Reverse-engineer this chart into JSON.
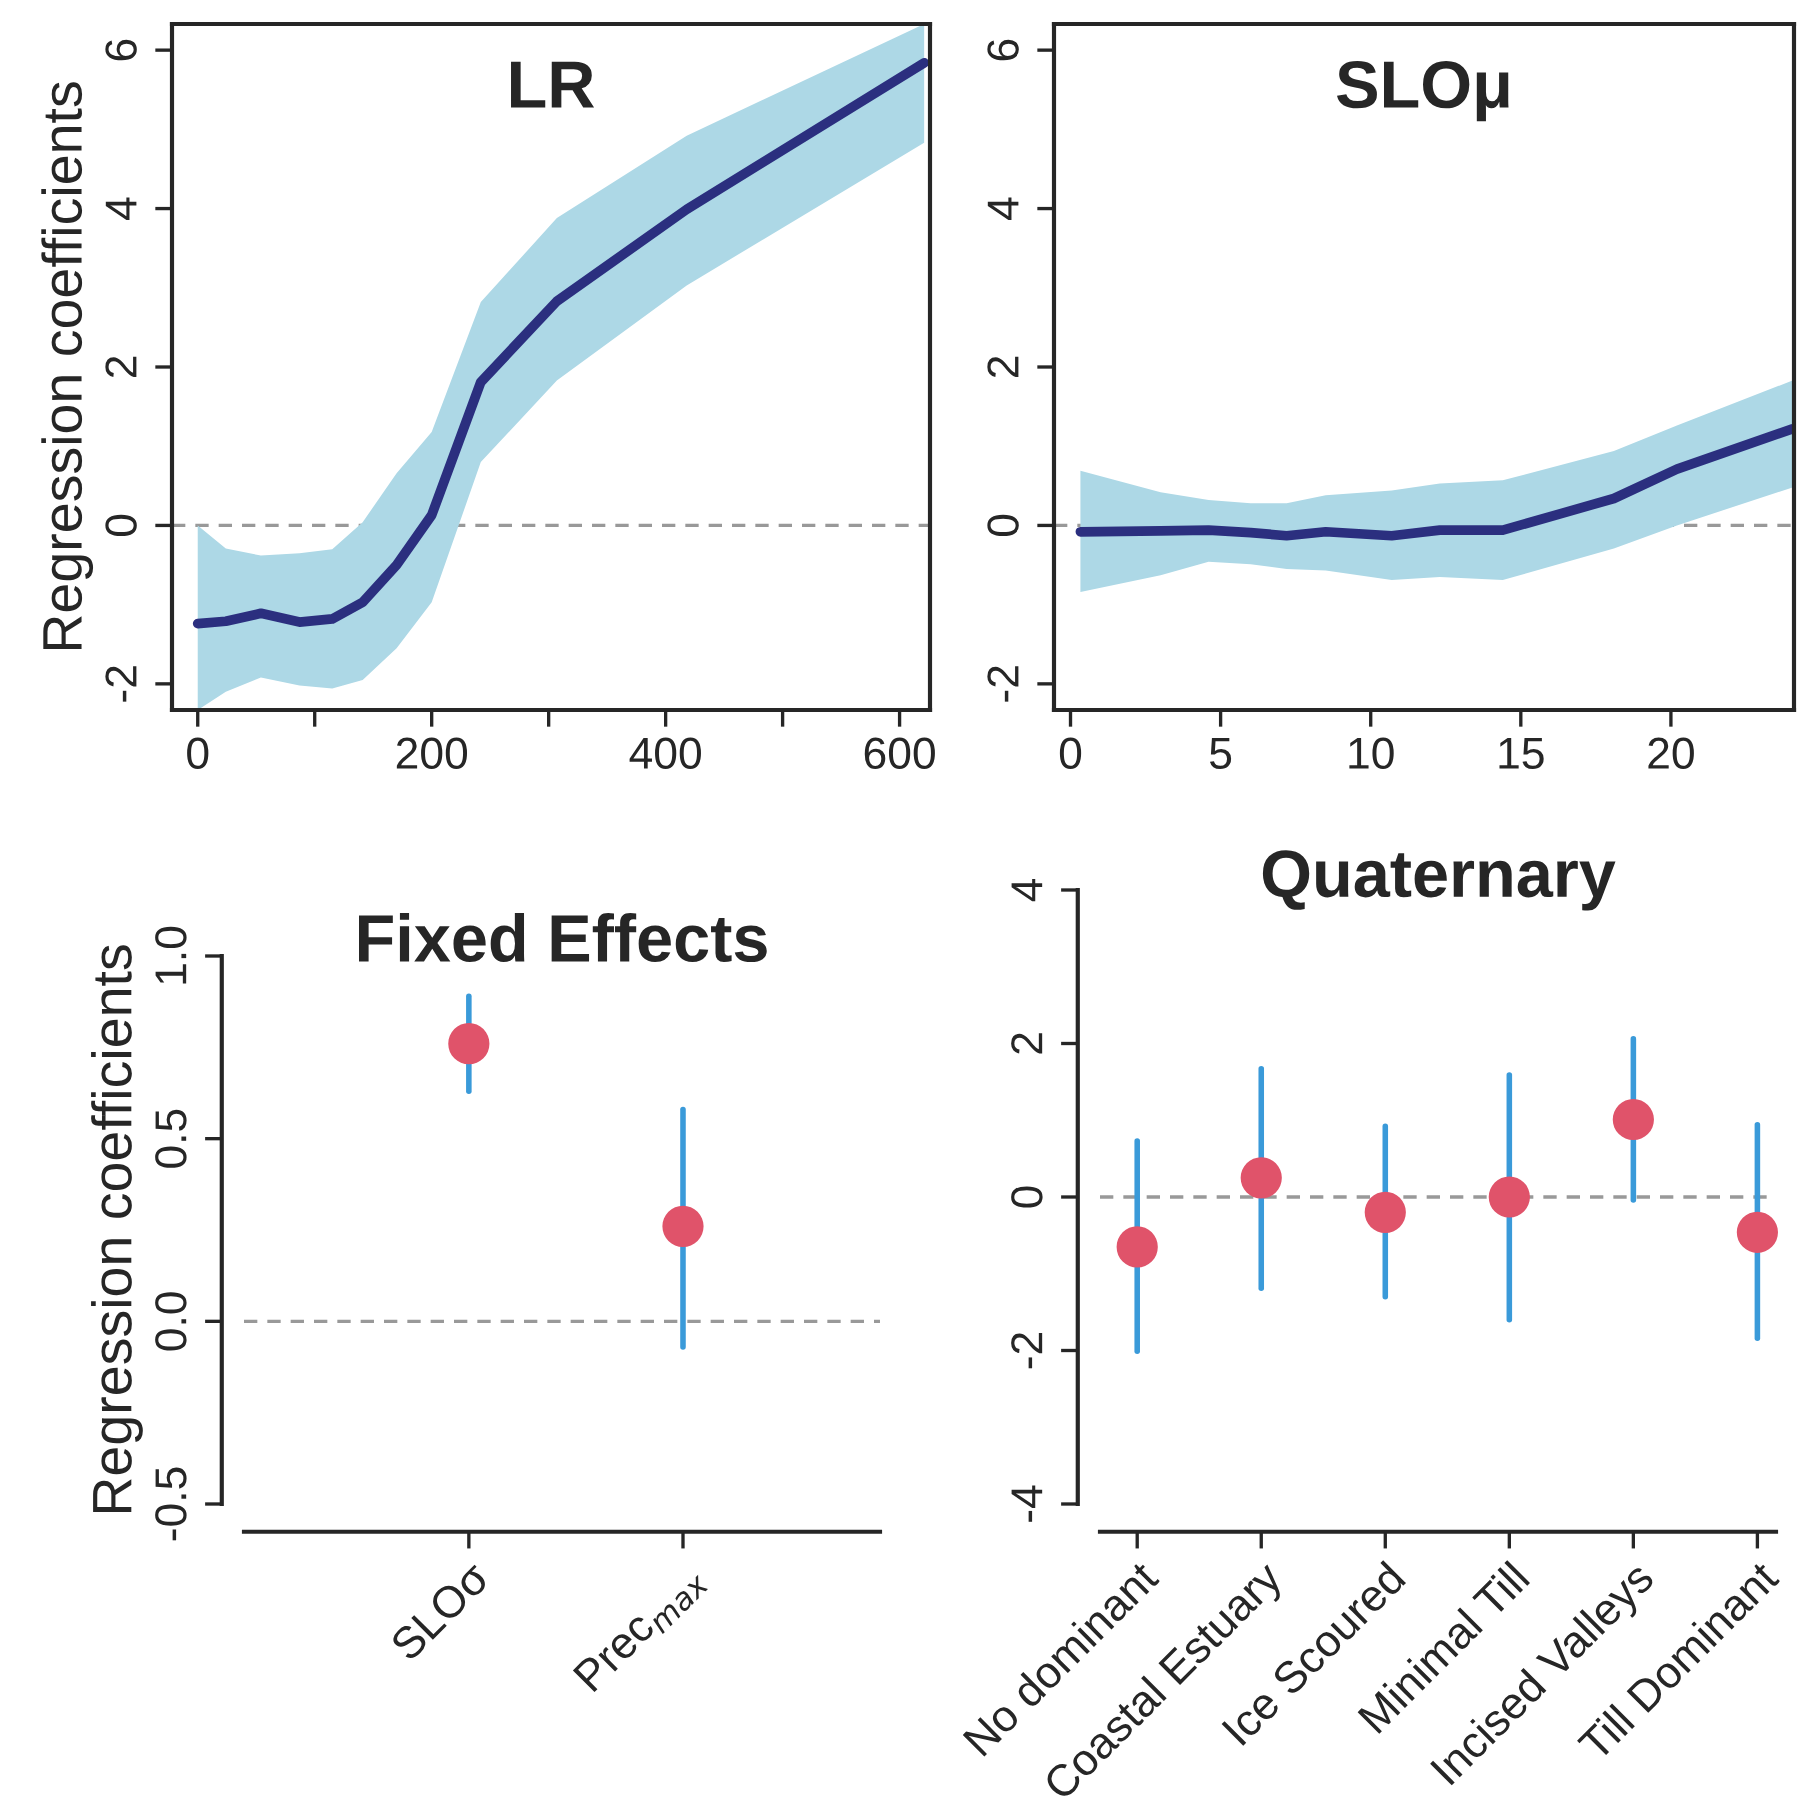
{
  "chart_data": [
    {
      "type": "line",
      "title": "LR",
      "ylabel": "Regression coefficients",
      "xlim": [
        -22,
        626
      ],
      "ylim": [
        -2.33,
        6.33
      ],
      "xticks": [
        0,
        {
          "value": 100,
          "label": null
        },
        200,
        {
          "value": 300,
          "label": null
        },
        400,
        {
          "value": 500,
          "label": null
        },
        600
      ],
      "yticks": [
        -2,
        0,
        2,
        4,
        6
      ],
      "ref_lines": [
        {
          "axis": "y",
          "value": 0,
          "color": "#999999",
          "line_style": "dashed"
        }
      ],
      "series": [
        {
          "color": "#2b2f7f",
          "x": [
            0,
            24,
            54,
            87,
            115,
            141,
            170,
            200,
            242,
            307,
            418,
            621
          ],
          "values": [
            -1.24,
            -1.21,
            -1.11,
            -1.22,
            -1.18,
            -0.97,
            -0.5,
            0.13,
            1.81,
            2.83,
            3.99,
            5.84
          ],
          "lower": [
            -2.33,
            -2.1,
            -1.92,
            -2.02,
            -2.06,
            -1.95,
            -1.55,
            -0.97,
            0.8,
            1.83,
            3.03,
            4.83
          ],
          "upper": [
            0,
            -0.29,
            -0.38,
            -0.35,
            -0.3,
            0.04,
            0.66,
            1.18,
            2.82,
            3.88,
            4.92,
            6.33
          ]
        }
      ]
    },
    {
      "type": "line",
      "title": "SLOμ",
      "xlim": [
        -0.55,
        24.1
      ],
      "ylim": [
        -2.33,
        6.33
      ],
      "xticks": [
        0,
        5,
        10,
        15,
        20
      ],
      "yticks": [
        -2,
        0,
        2,
        4,
        6
      ],
      "ref_lines": [
        {
          "axis": "y",
          "value": 0,
          "color": "#999999",
          "line_style": "dashed"
        }
      ],
      "series": [
        {
          "color": "#2b2f7f",
          "x": [
            0.33,
            3.0,
            4.6,
            6.0,
            7.2,
            8.5,
            10.7,
            12.3,
            14.4,
            18.1,
            20.2,
            24.05
          ],
          "values": [
            -0.08,
            -0.07,
            -0.06,
            -0.09,
            -0.13,
            -0.08,
            -0.13,
            -0.06,
            -0.06,
            0.34,
            0.71,
            1.22
          ],
          "lower": [
            -0.84,
            -0.63,
            -0.46,
            -0.49,
            -0.55,
            -0.57,
            -0.69,
            -0.65,
            -0.69,
            -0.29,
            0,
            0.48
          ],
          "upper": [
            0.69,
            0.42,
            0.32,
            0.28,
            0.28,
            0.38,
            0.44,
            0.53,
            0.57,
            0.94,
            1.26,
            1.83
          ]
        }
      ]
    },
    {
      "type": "scatter",
      "title": "Fixed Effects",
      "ylabel": "Regression coefficients",
      "categories": [
        "SLOσ",
        "Prec$_{max}$"
      ],
      "ylim": [
        -0.5,
        1.0
      ],
      "yticks": [
        -0.5,
        {
          "value": 0,
          "label": "0.0"
        },
        0.5,
        {
          "value": 1,
          "label": "1.0"
        }
      ],
      "marker": "circle",
      "ref_lines": [
        {
          "axis": "y",
          "value": 0,
          "color": "#999999",
          "line_style": "dashed"
        }
      ],
      "series": [
        {
          "color": "#e0536a",
          "values": [
            0.76,
            0.26
          ],
          "errors": [
            [
              0.63,
              0.89
            ],
            [
              -0.07,
              0.58
            ]
          ]
        }
      ]
    },
    {
      "type": "scatter",
      "title": "Quaternary",
      "categories": [
        "No dominant",
        "Coastal Estuary",
        "Ice Scoured",
        "Minimal Till",
        "Incised Valleys",
        "Till Dominant"
      ],
      "ylim": [
        -4,
        4
      ],
      "yticks": [
        -4,
        -2,
        0,
        2,
        4
      ],
      "marker": "circle",
      "ref_lines": [
        {
          "axis": "y",
          "value": 0,
          "color": "#999999",
          "line_style": "dashed"
        }
      ],
      "series": [
        {
          "color": "#e0536a",
          "values": [
            -0.65,
            0.25,
            -0.2,
            0.0,
            1.01,
            -0.46
          ],
          "errors": [
            [
              -2.01,
              0.73
            ],
            [
              -1.19,
              1.67
            ],
            [
              -1.3,
              0.92
            ],
            [
              -1.6,
              1.59
            ],
            [
              -0.04,
              2.06
            ],
            [
              -1.84,
              0.94
            ]
          ]
        }
      ]
    }
  ]
}
